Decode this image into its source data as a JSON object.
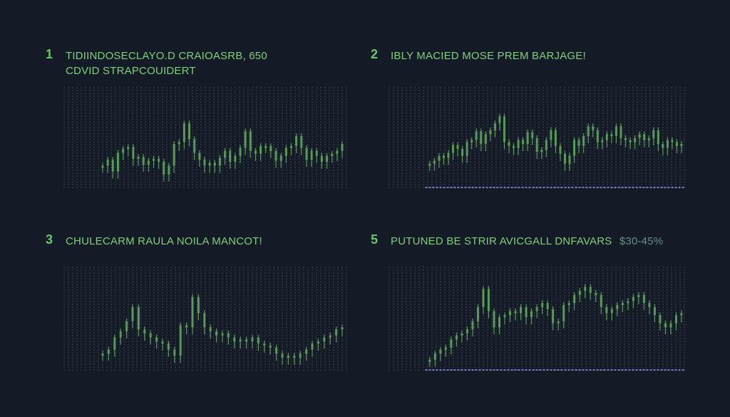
{
  "colors": {
    "background": "#141b27",
    "accent_green": "#7fd07a",
    "candle": "#5a9a58",
    "gridline": "#6d7683",
    "baseline_blue": "#8a8fe0",
    "range_text": "#6a8f86"
  },
  "panels": [
    {
      "number": "1",
      "title": "TIDIINDOSECLAYO.D CRAIOASRB, 650",
      "subtitle": "CDVID STRAPCOUIDERT",
      "range_label": ""
    },
    {
      "number": "2",
      "title": "IBLY MACIED  MOSE PREM BARJAGE!",
      "subtitle": "",
      "range_label": ""
    },
    {
      "number": "3",
      "title": "CHULECARM RAULA NOILA MANCOT!",
      "subtitle": "",
      "range_label": ""
    },
    {
      "number": "5",
      "title": "PUTUNED BE STRIR AVICGALL DNFAVARS",
      "subtitle": "",
      "range_label": "$30-45%"
    }
  ],
  "chart_data": [
    {
      "type": "line",
      "gridlines": true,
      "ylim": [
        0,
        100
      ],
      "baseline": false,
      "series": [
        {
          "values": [
            20,
            26,
            14,
            33,
            37,
            39,
            27,
            29,
            21,
            25,
            27,
            24,
            11,
            20,
            42,
            44,
            63,
            47,
            33,
            26,
            20,
            23,
            20,
            28,
            35,
            24,
            30,
            38,
            55,
            35,
            32,
            40,
            40,
            35,
            25,
            30,
            38,
            40,
            50,
            38,
            26,
            35,
            30,
            24,
            30,
            32,
            35,
            42
          ]
        }
      ]
    },
    {
      "type": "line",
      "gridlines": true,
      "ylim": [
        0,
        100
      ],
      "baseline": true,
      "series": [
        {
          "values": [
            22,
            25,
            30,
            28,
            33,
            41,
            37,
            30,
            44,
            46,
            55,
            42,
            52,
            56,
            63,
            70,
            44,
            40,
            38,
            46,
            42,
            54,
            48,
            34,
            36,
            46,
            56,
            40,
            32,
            22,
            30,
            46,
            40,
            50,
            60,
            56,
            44,
            46,
            52,
            50,
            60,
            48,
            46,
            44,
            48,
            52,
            46,
            48,
            56,
            42,
            38,
            46,
            44,
            40,
            42
          ]
        }
      ]
    },
    {
      "type": "line",
      "gridlines": true,
      "ylim": [
        0,
        100
      ],
      "baseline": false,
      "series": [
        {
          "values": [
            14,
            18,
            30,
            36,
            46,
            60,
            38,
            34,
            30,
            26,
            24,
            18,
            12,
            42,
            40,
            70,
            54,
            40,
            36,
            32,
            34,
            30,
            26,
            28,
            26,
            30,
            24,
            22,
            20,
            14,
            10,
            12,
            10,
            14,
            18,
            24,
            26,
            30,
            32,
            38,
            40
          ]
        }
      ]
    },
    {
      "type": "line",
      "gridlines": true,
      "ylim": [
        0,
        100
      ],
      "baseline": true,
      "series": [
        {
          "values": [
            8,
            14,
            18,
            20,
            28,
            32,
            34,
            38,
            46,
            60,
            78,
            56,
            40,
            50,
            52,
            56,
            54,
            60,
            50,
            56,
            60,
            64,
            58,
            44,
            46,
            62,
            64,
            72,
            76,
            80,
            74,
            72,
            60,
            54,
            58,
            62,
            64,
            66,
            70,
            72,
            64,
            60,
            52,
            44,
            40,
            44,
            52,
            54
          ]
        }
      ]
    }
  ]
}
